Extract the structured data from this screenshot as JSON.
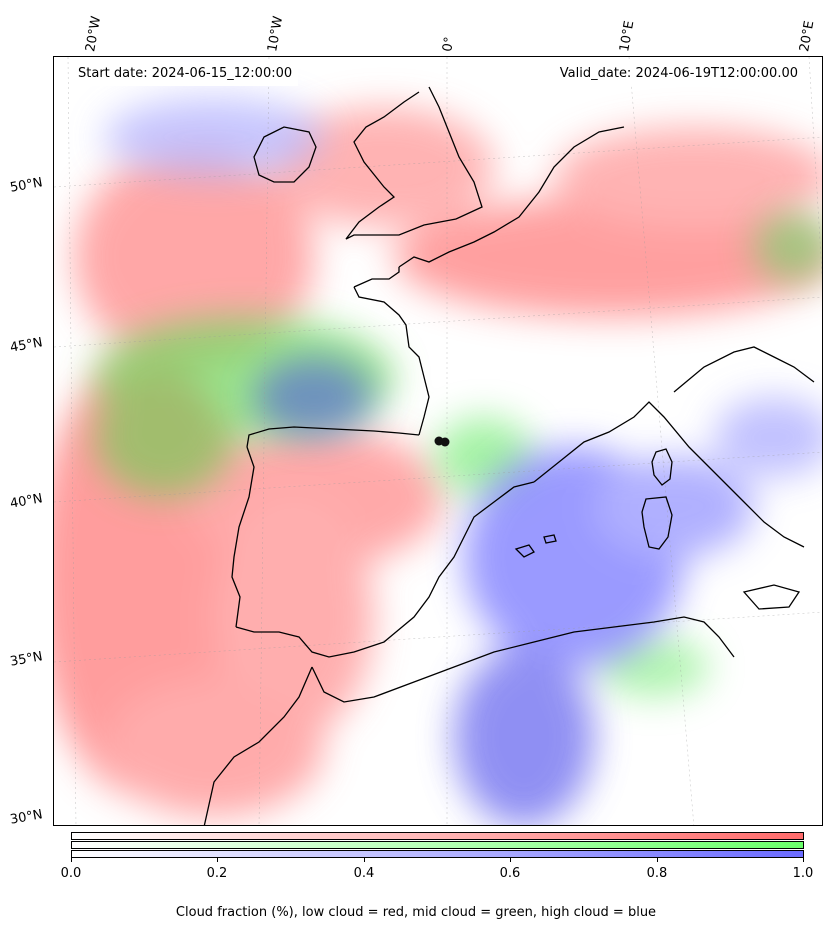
{
  "header": {
    "start_label": "Start date: 2024-06-15_12:00:00",
    "valid_label": "Valid_date: 2024-06-19T12:00:00.00"
  },
  "axes": {
    "lon_labels": [
      "20°W",
      "10°W",
      "0°",
      "10°E",
      "20°E"
    ],
    "lat_labels": [
      "50°N",
      "45°N",
      "40°N",
      "35°N",
      "30°N"
    ]
  },
  "colorbar": {
    "ticks": [
      "0.0",
      "0.2",
      "0.4",
      "0.6",
      "0.8",
      "1.0"
    ],
    "colors": {
      "low_cloud": "#ff6b6b",
      "mid_cloud": "#6bff6b",
      "high_cloud": "#6b6bff"
    }
  },
  "caption": "Cloud fraction (%), low cloud = red, mid cloud = green, high cloud = blue",
  "colors": {
    "low": "#ff7d7d",
    "mid": "#7ae07a",
    "high": "#7b7bff",
    "coast": "#000000"
  }
}
